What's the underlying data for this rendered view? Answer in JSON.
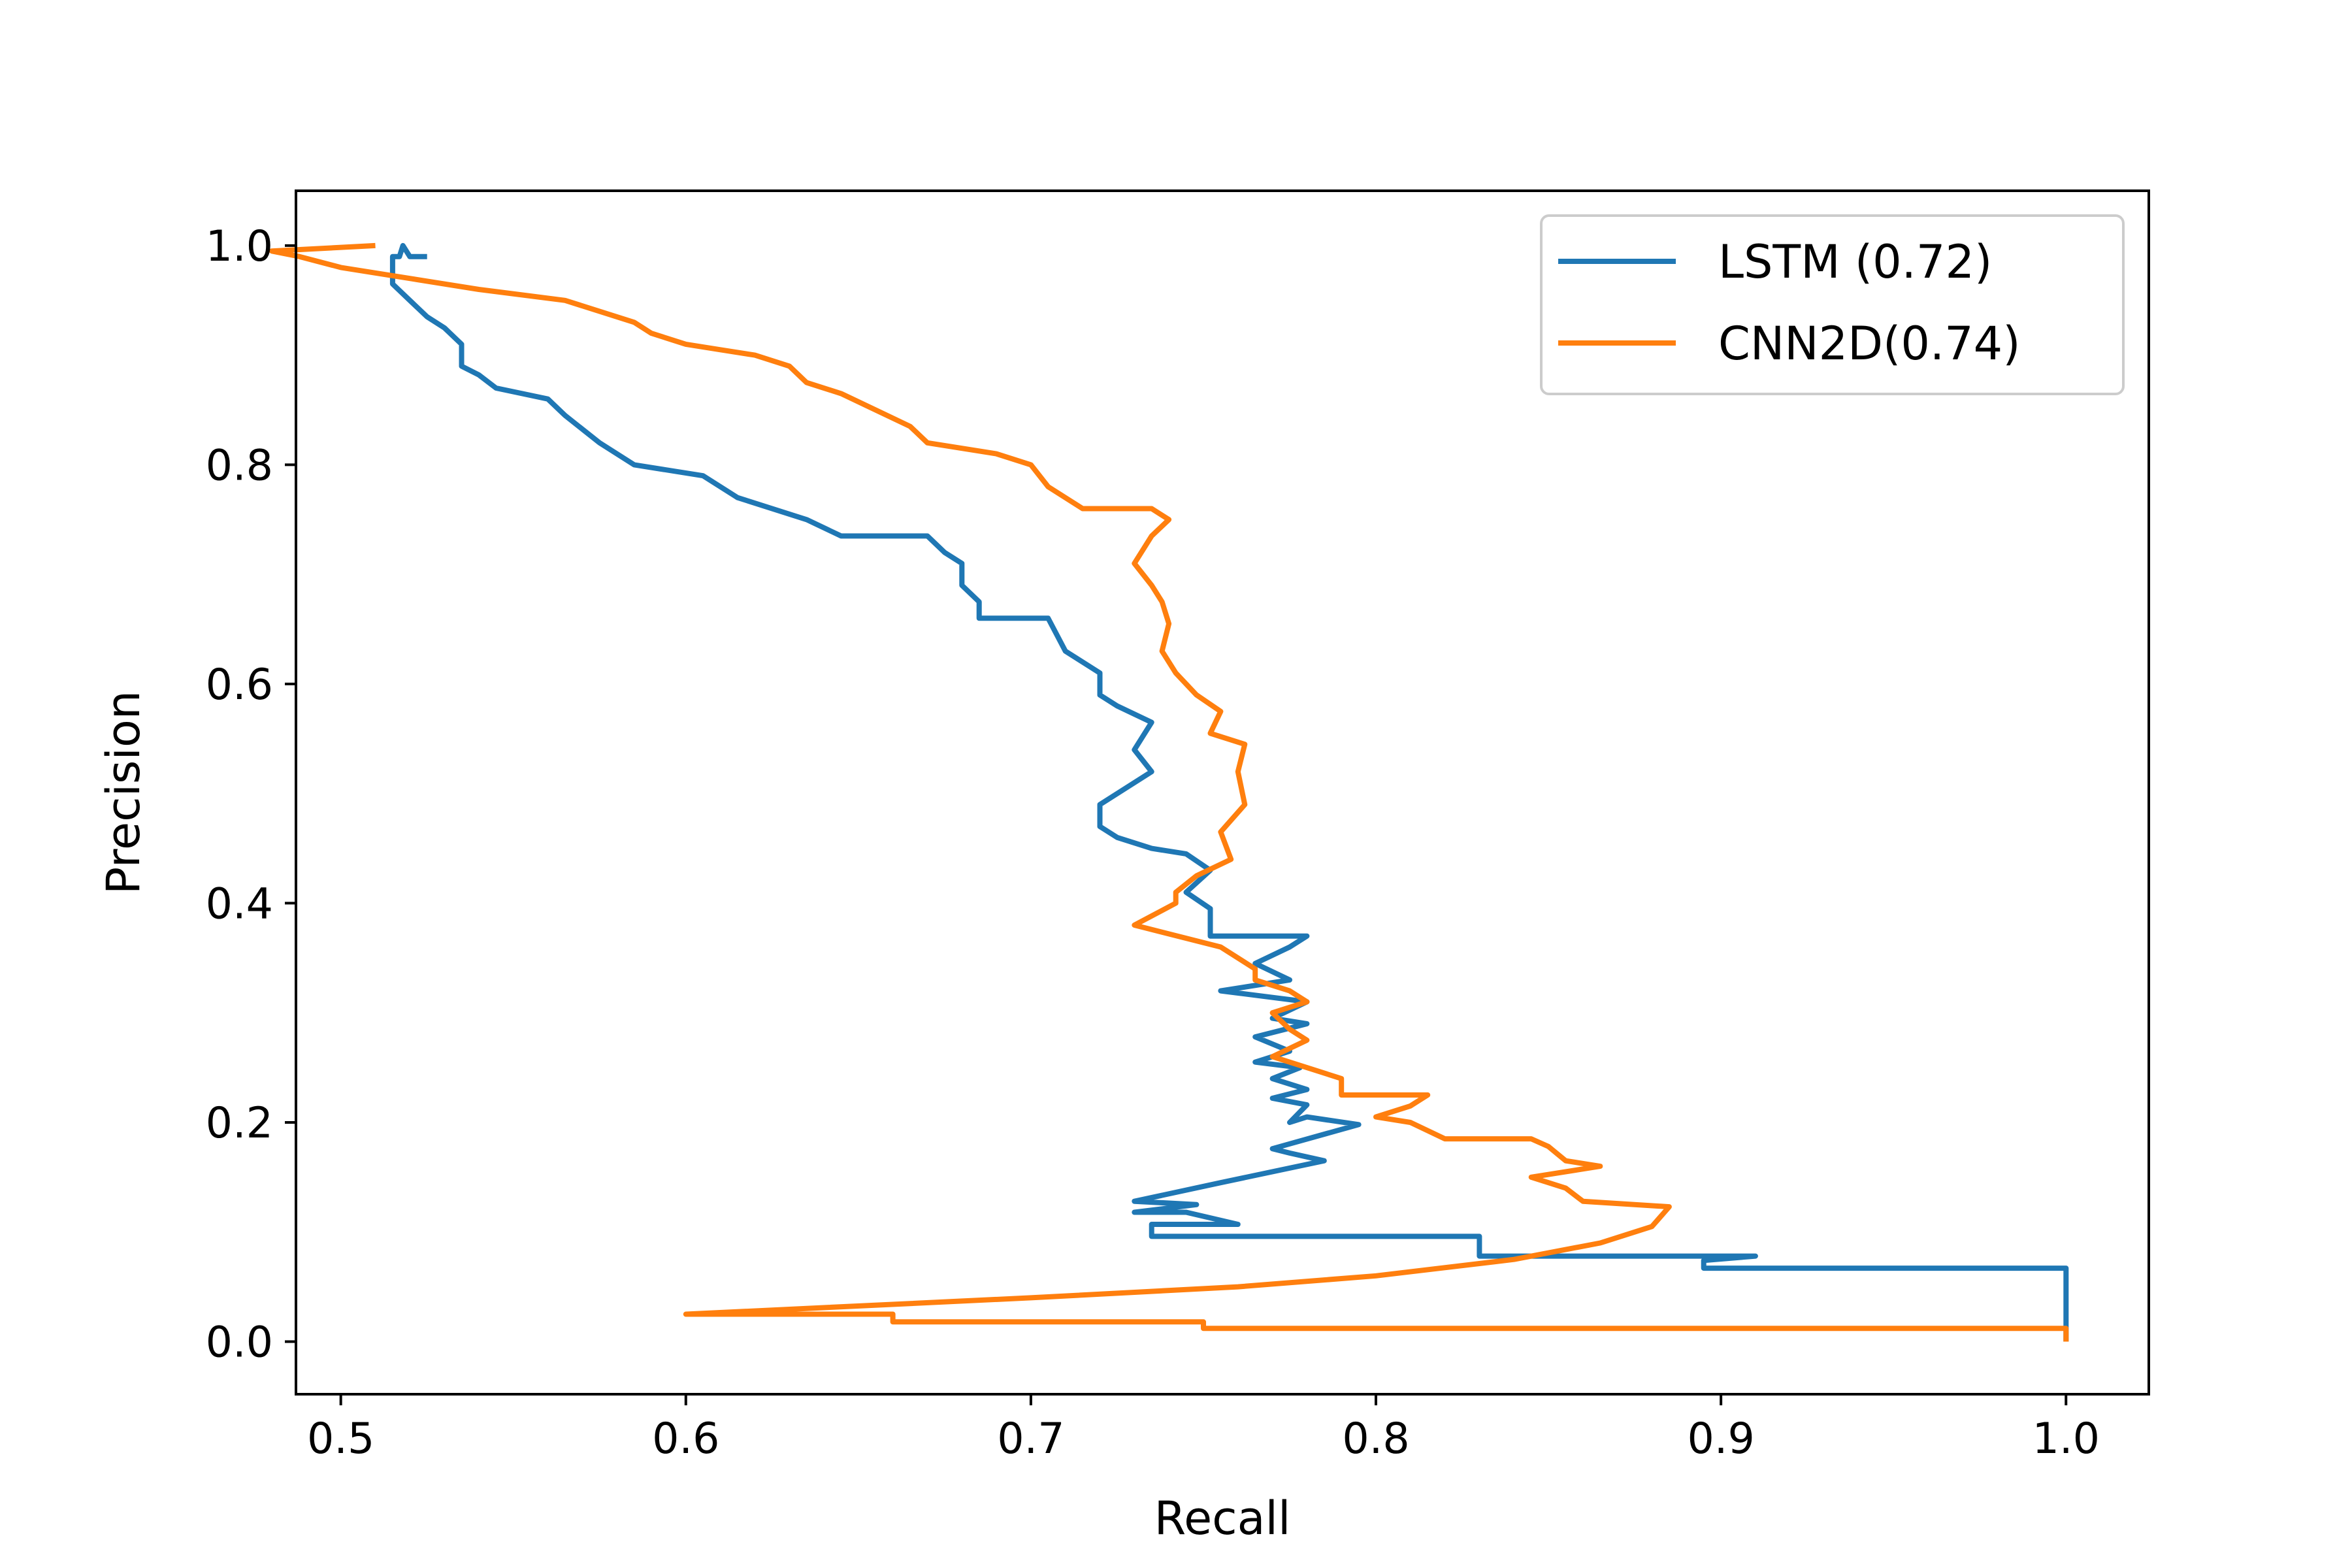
{
  "chart_data": {
    "type": "line",
    "title": "",
    "xlabel": "Recall",
    "ylabel": "Precision",
    "xlim": [
      0.487,
      1.024
    ],
    "ylim": [
      -0.048,
      1.05
    ],
    "xticks": [
      0.5,
      0.6,
      0.7,
      0.8,
      0.9,
      1.0
    ],
    "xtick_labels": [
      "0.5",
      "0.6",
      "0.7",
      "0.8",
      "0.9",
      "1.0"
    ],
    "yticks": [
      0.0,
      0.2,
      0.4,
      0.6,
      0.8,
      1.0
    ],
    "ytick_labels": [
      "0.0",
      "0.2",
      "0.4",
      "0.6",
      "0.8",
      "1.0"
    ],
    "grid": false,
    "legend_position": "top-right",
    "series": [
      {
        "name": "LSTM (0.72)",
        "color": "#1f77b4",
        "points": [
          [
            1.0,
            0.0
          ],
          [
            1.0,
            0.067
          ],
          [
            0.895,
            0.067
          ],
          [
            0.895,
            0.074
          ],
          [
            0.91,
            0.078
          ],
          [
            0.83,
            0.078
          ],
          [
            0.83,
            0.096
          ],
          [
            0.735,
            0.096
          ],
          [
            0.735,
            0.107
          ],
          [
            0.76,
            0.107
          ],
          [
            0.745,
            0.118
          ],
          [
            0.73,
            0.118
          ],
          [
            0.748,
            0.125
          ],
          [
            0.73,
            0.128
          ],
          [
            0.755,
            0.145
          ],
          [
            0.785,
            0.165
          ],
          [
            0.775,
            0.172
          ],
          [
            0.77,
            0.176
          ],
          [
            0.795,
            0.198
          ],
          [
            0.78,
            0.205
          ],
          [
            0.775,
            0.2
          ],
          [
            0.78,
            0.216
          ],
          [
            0.77,
            0.222
          ],
          [
            0.78,
            0.23
          ],
          [
            0.77,
            0.24
          ],
          [
            0.778,
            0.25
          ],
          [
            0.765,
            0.255
          ],
          [
            0.775,
            0.265
          ],
          [
            0.765,
            0.278
          ],
          [
            0.78,
            0.29
          ],
          [
            0.77,
            0.295
          ],
          [
            0.78,
            0.31
          ],
          [
            0.755,
            0.32
          ],
          [
            0.775,
            0.33
          ],
          [
            0.765,
            0.345
          ],
          [
            0.775,
            0.36
          ],
          [
            0.78,
            0.37
          ],
          [
            0.752,
            0.37
          ],
          [
            0.752,
            0.395
          ],
          [
            0.745,
            0.41
          ],
          [
            0.752,
            0.43
          ],
          [
            0.745,
            0.445
          ],
          [
            0.735,
            0.45
          ],
          [
            0.725,
            0.46
          ],
          [
            0.72,
            0.47
          ],
          [
            0.72,
            0.49
          ],
          [
            0.735,
            0.52
          ],
          [
            0.73,
            0.54
          ],
          [
            0.735,
            0.565
          ],
          [
            0.725,
            0.58
          ],
          [
            0.72,
            0.59
          ],
          [
            0.72,
            0.61
          ],
          [
            0.71,
            0.63
          ],
          [
            0.705,
            0.66
          ],
          [
            0.685,
            0.66
          ],
          [
            0.685,
            0.675
          ],
          [
            0.68,
            0.69
          ],
          [
            0.68,
            0.71
          ],
          [
            0.675,
            0.72
          ],
          [
            0.67,
            0.735
          ],
          [
            0.645,
            0.735
          ],
          [
            0.635,
            0.75
          ],
          [
            0.615,
            0.77
          ],
          [
            0.605,
            0.79
          ],
          [
            0.585,
            0.8
          ],
          [
            0.575,
            0.82
          ],
          [
            0.565,
            0.845
          ],
          [
            0.56,
            0.86
          ],
          [
            0.545,
            0.87
          ],
          [
            0.54,
            0.882
          ],
          [
            0.535,
            0.89
          ],
          [
            0.535,
            0.91
          ],
          [
            0.53,
            0.925
          ],
          [
            0.525,
            0.935
          ],
          [
            0.52,
            0.95
          ],
          [
            0.515,
            0.965
          ],
          [
            0.515,
            0.99
          ],
          [
            0.517,
            0.99
          ],
          [
            0.518,
            1.0
          ],
          [
            0.52,
            0.99
          ],
          [
            0.525,
            0.99
          ]
        ]
      },
      {
        "name": "CNN2D(0.74)",
        "color": "#ff7f0e",
        "points": [
          [
            1.0,
            0.0
          ],
          [
            1.0,
            0.012
          ],
          [
            0.75,
            0.012
          ],
          [
            0.75,
            0.018
          ],
          [
            0.66,
            0.018
          ],
          [
            0.66,
            0.025
          ],
          [
            0.6,
            0.025
          ],
          [
            0.7,
            0.04
          ],
          [
            0.76,
            0.05
          ],
          [
            0.8,
            0.06
          ],
          [
            0.84,
            0.075
          ],
          [
            0.865,
            0.09
          ],
          [
            0.88,
            0.105
          ],
          [
            0.885,
            0.123
          ],
          [
            0.86,
            0.128
          ],
          [
            0.855,
            0.14
          ],
          [
            0.845,
            0.15
          ],
          [
            0.865,
            0.16
          ],
          [
            0.855,
            0.165
          ],
          [
            0.85,
            0.178
          ],
          [
            0.845,
            0.185
          ],
          [
            0.82,
            0.185
          ],
          [
            0.81,
            0.2
          ],
          [
            0.8,
            0.205
          ],
          [
            0.81,
            0.215
          ],
          [
            0.815,
            0.225
          ],
          [
            0.79,
            0.225
          ],
          [
            0.79,
            0.24
          ],
          [
            0.78,
            0.25
          ],
          [
            0.77,
            0.26
          ],
          [
            0.78,
            0.275
          ],
          [
            0.775,
            0.285
          ],
          [
            0.77,
            0.3
          ],
          [
            0.78,
            0.31
          ],
          [
            0.775,
            0.32
          ],
          [
            0.765,
            0.33
          ],
          [
            0.765,
            0.34
          ],
          [
            0.755,
            0.36
          ],
          [
            0.73,
            0.38
          ],
          [
            0.742,
            0.4
          ],
          [
            0.742,
            0.41
          ],
          [
            0.748,
            0.425
          ],
          [
            0.758,
            0.44
          ],
          [
            0.755,
            0.465
          ],
          [
            0.762,
            0.49
          ],
          [
            0.76,
            0.52
          ],
          [
            0.762,
            0.545
          ],
          [
            0.752,
            0.555
          ],
          [
            0.755,
            0.575
          ],
          [
            0.748,
            0.59
          ],
          [
            0.742,
            0.61
          ],
          [
            0.738,
            0.63
          ],
          [
            0.74,
            0.655
          ],
          [
            0.738,
            0.675
          ],
          [
            0.735,
            0.69
          ],
          [
            0.73,
            0.71
          ],
          [
            0.735,
            0.735
          ],
          [
            0.74,
            0.75
          ],
          [
            0.735,
            0.76
          ],
          [
            0.715,
            0.76
          ],
          [
            0.705,
            0.78
          ],
          [
            0.7,
            0.8
          ],
          [
            0.69,
            0.81
          ],
          [
            0.67,
            0.82
          ],
          [
            0.665,
            0.835
          ],
          [
            0.655,
            0.85
          ],
          [
            0.645,
            0.865
          ],
          [
            0.635,
            0.875
          ],
          [
            0.63,
            0.89
          ],
          [
            0.62,
            0.9
          ],
          [
            0.61,
            0.905
          ],
          [
            0.6,
            0.91
          ],
          [
            0.59,
            0.92
          ],
          [
            0.585,
            0.93
          ],
          [
            0.565,
            0.95
          ],
          [
            0.54,
            0.96
          ],
          [
            0.52,
            0.97
          ],
          [
            0.5,
            0.98
          ],
          [
            0.488,
            0.99
          ],
          [
            0.48,
            0.995
          ],
          [
            0.51,
            1.0
          ]
        ]
      }
    ]
  }
}
